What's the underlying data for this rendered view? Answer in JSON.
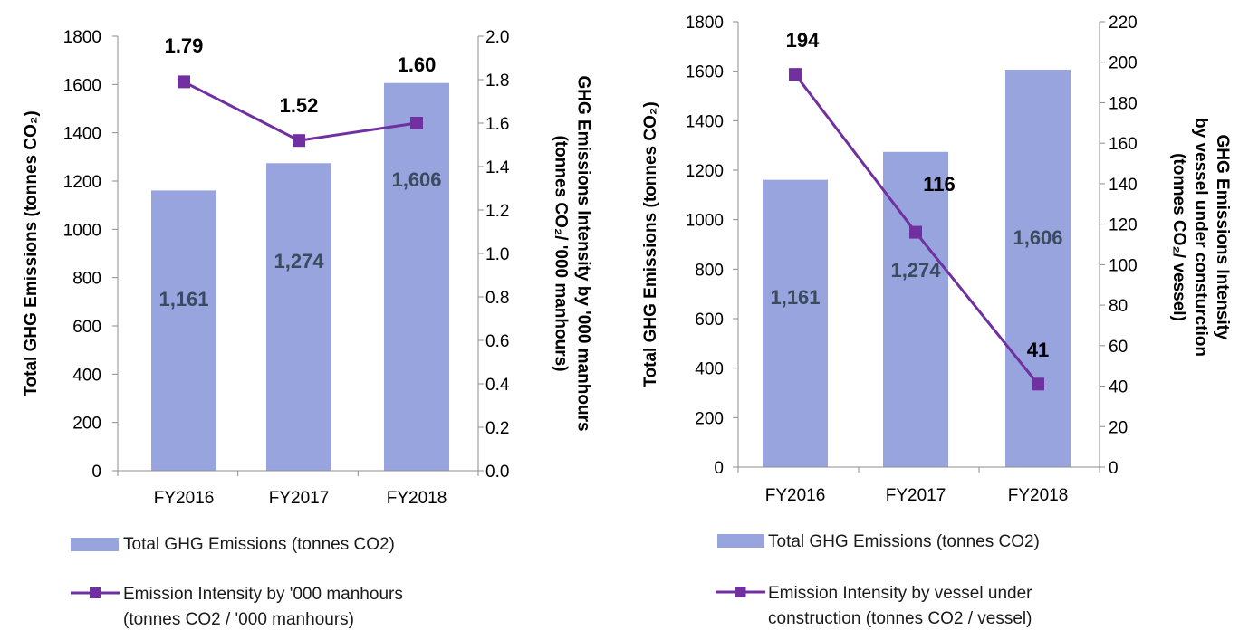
{
  "charts": [
    {
      "chart_data": {
        "type": "bar",
        "categories": [
          "FY2016",
          "FY2017",
          "FY2018"
        ],
        "series": [
          {
            "name": "Total  GHG Emissions (tonnes CO2)",
            "type": "bar",
            "axis": "left",
            "values": [
              1161,
              1274,
              1606
            ],
            "labels": [
              "1,161",
              "1,274",
              "1,606"
            ],
            "color": "#97a4de"
          },
          {
            "name": "Emission Intensity by '000 manhours (tonnes CO2 / '000 manhours)",
            "type": "line",
            "axis": "right",
            "values": [
              1.79,
              1.52,
              1.6
            ],
            "labels": [
              "1.79",
              "1.52",
              "1.60"
            ],
            "color": "#7030a0"
          }
        ],
        "ylabel": "Total GHG Emissions (tonnes CO₂)",
        "ylim": [
          0,
          1800
        ],
        "yticks": [
          "0",
          "200",
          "400",
          "600",
          "800",
          "1000",
          "1200",
          "1400",
          "1600",
          "1800"
        ],
        "y2label_lines": [
          "GHG Emissions Intensity by '000 manhours",
          "(tonnes CO₂/ '000 manhours)"
        ],
        "y2lim": [
          0,
          2.0
        ],
        "y2ticks": [
          "0.0",
          "0.2",
          "0.4",
          "0.6",
          "0.8",
          "1.0",
          "1.2",
          "1.4",
          "1.6",
          "1.8",
          "2.0"
        ],
        "legend_position": "bottom",
        "legend": [
          {
            "kind": "bar",
            "lines": [
              "Total  GHG Emissions (tonnes CO2)"
            ]
          },
          {
            "kind": "line",
            "lines": [
              "Emission Intensity by '000 manhours",
              "(tonnes CO2 / '000 manhours)"
            ]
          }
        ]
      }
    },
    {
      "chart_data": {
        "type": "bar",
        "categories": [
          "FY2016",
          "FY2017",
          "FY2018"
        ],
        "series": [
          {
            "name": "Total  GHG Emissions (tonnes CO2)",
            "type": "bar",
            "axis": "left",
            "values": [
              1161,
              1274,
              1606
            ],
            "labels": [
              "1,161",
              "1,274",
              "1,606"
            ],
            "color": "#97a4de"
          },
          {
            "name": "Emission Intensity by vessel under construction (tonnes CO2 / vessel)",
            "type": "line",
            "axis": "right",
            "values": [
              194,
              116,
              41
            ],
            "labels": [
              "194",
              "116",
              "41"
            ],
            "color": "#7030a0"
          }
        ],
        "ylabel": "Total GHG Emissions (tonnes CO₂)",
        "ylim": [
          0,
          1800
        ],
        "yticks": [
          "0",
          "200",
          "400",
          "600",
          "800",
          "1000",
          "1200",
          "1400",
          "1600",
          "1800"
        ],
        "y2label_lines": [
          "GHG Emissions Intensity",
          "by vessel under consturction",
          "(tonnes CO₂/ vessel)"
        ],
        "y2lim": [
          0,
          220
        ],
        "y2ticks": [
          "0",
          "20",
          "40",
          "60",
          "80",
          "100",
          "120",
          "140",
          "160",
          "180",
          "200",
          "220"
        ],
        "legend_position": "bottom",
        "legend": [
          {
            "kind": "bar",
            "lines": [
              "Total  GHG Emissions (tonnes CO2)"
            ]
          },
          {
            "kind": "line",
            "lines": [
              "Emission Intensity by vessel under",
              "construction (tonnes CO2 / vessel)"
            ]
          }
        ]
      }
    }
  ]
}
